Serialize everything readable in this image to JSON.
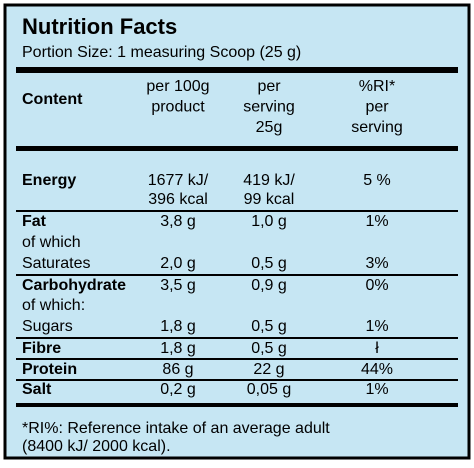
{
  "header": {
    "title": "Nutrition Facts",
    "portion": "Portion Size: 1 measuring Scoop (25 g)"
  },
  "table": {
    "columns": {
      "content": "Content",
      "per_100g": [
        "per 100g",
        "product"
      ],
      "per_serving": [
        "per",
        "serving",
        "25g"
      ],
      "ri": [
        "%RI*",
        "per",
        "serving"
      ]
    },
    "rows": [
      {
        "label": "Energy",
        "per_100g": "1677 kJ/",
        "per_serving": "419 kJ/",
        "ri": "5 %"
      },
      {
        "per_100g": "396 kcal",
        "per_serving": "99 kcal"
      },
      {
        "label": "Fat",
        "per_100g": "3,8 g",
        "per_serving": "1,0 g",
        "ri": "1%"
      },
      {
        "label": "of which"
      },
      {
        "label": "Saturates",
        "per_100g": "2,0 g",
        "per_serving": "0,5 g",
        "ri": "3%"
      },
      {
        "label": "Carbohydrate",
        "per_100g": "3,5 g",
        "per_serving": "0,9 g",
        "ri": "0%"
      },
      {
        "label": "of which:"
      },
      {
        "label": "Sugars",
        "per_100g": "1,8 g",
        "per_serving": "0,5 g",
        "ri": "1%"
      },
      {
        "label": "Fibre",
        "per_100g": "1,8 g",
        "per_serving": "0,5 g",
        "ri": "ł"
      },
      {
        "label": "Protein",
        "per_100g": "86 g",
        "per_serving": "22 g",
        "ri": "44%"
      },
      {
        "label": "Salt",
        "per_100g": "0,2 g",
        "per_serving": "0,05 g",
        "ri": "1%"
      }
    ]
  },
  "footnote": [
    "*RI%: Reference intake of an average adult",
    "(8400 kJ/ 2000 kcal)."
  ]
}
